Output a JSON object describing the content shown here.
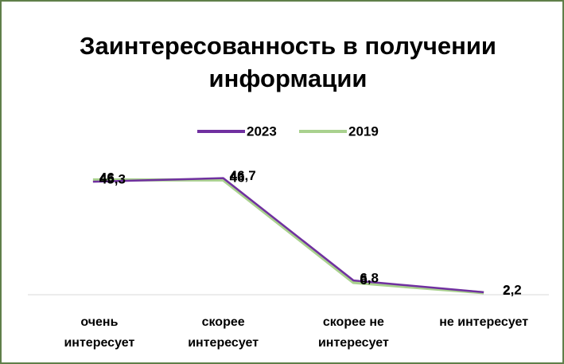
{
  "chart_data": {
    "type": "line",
    "title": "Заинтересованность в получении информации",
    "categories": [
      "очень\nинтересует",
      "скорее\nинтересует",
      "скорее не\nинтересует",
      "не интересует"
    ],
    "series": [
      {
        "name": "2023",
        "color": "#7030a0",
        "values": [
          45.3,
          46.7,
          6.8,
          2.2
        ],
        "value_labels": [
          "45,3",
          "46,7",
          "6,8",
          "2,2"
        ]
      },
      {
        "name": "2019",
        "color": "#a9d18e",
        "values": [
          46,
          46,
          6,
          2
        ]
      }
    ],
    "ylim": [
      0,
      50
    ]
  }
}
